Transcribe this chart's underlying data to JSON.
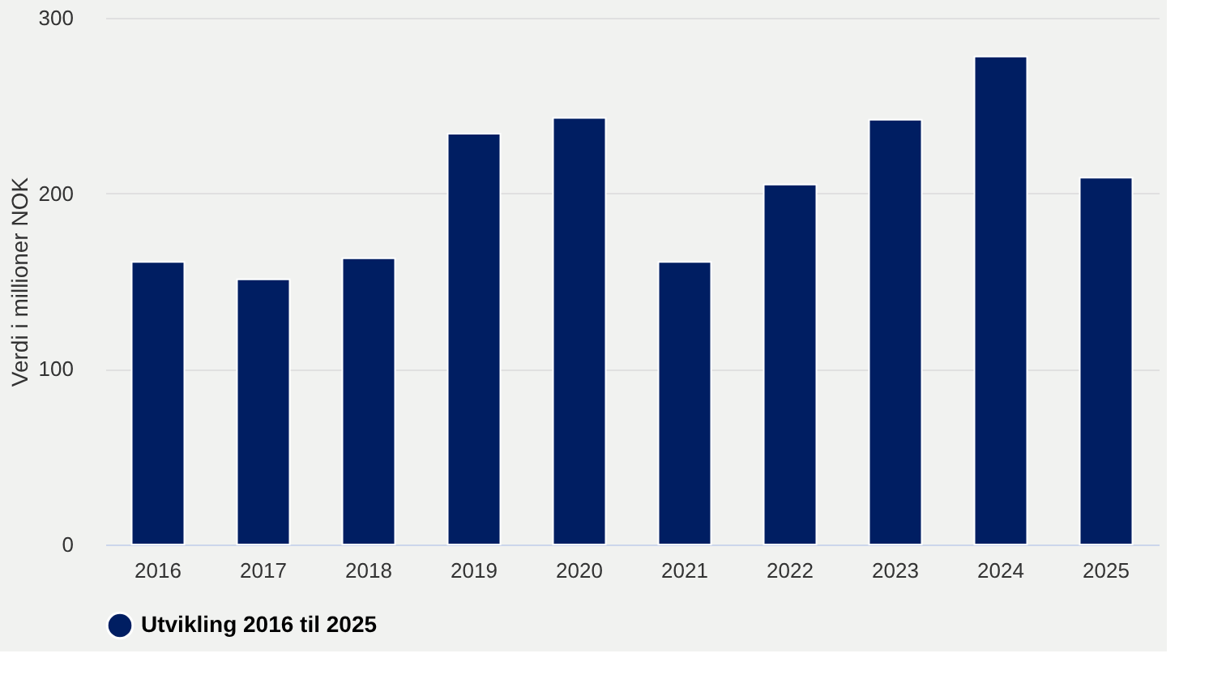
{
  "chart_data": {
    "type": "bar",
    "ylabel": "Verdi i millioner NOK",
    "categories": [
      "2016",
      "2017",
      "2018",
      "2019",
      "2020",
      "2021",
      "2022",
      "2023",
      "2024",
      "2025"
    ],
    "series": [
      {
        "name": "Utvikling 2016 til 2025",
        "color": "#001e62",
        "values": [
          161,
          151,
          163,
          234,
          243,
          161,
          205,
          242,
          278,
          209
        ]
      }
    ],
    "ylim": [
      0,
      300
    ],
    "yticks": [
      0,
      100,
      200,
      300
    ],
    "grid": "y",
    "legend": "bottom"
  }
}
